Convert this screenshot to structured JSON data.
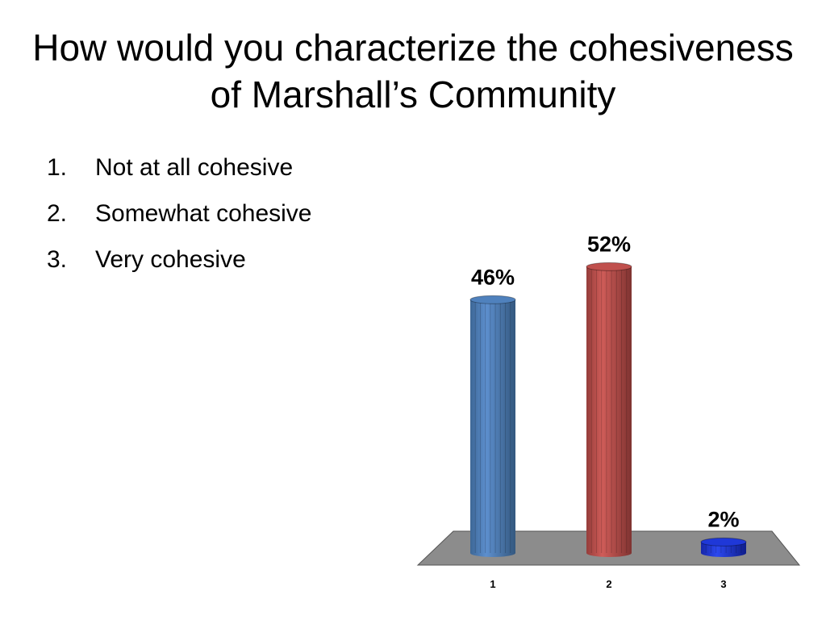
{
  "slide": {
    "title": "How would you characterize the cohesiveness of Marshall’s Community"
  },
  "answers": [
    {
      "number": "1.",
      "label": "Not at all cohesive"
    },
    {
      "number": "2.",
      "label": "Somewhat cohesive"
    },
    {
      "number": "3.",
      "label": "Very cohesive"
    }
  ],
  "chart_data": {
    "type": "bar",
    "title": "",
    "xlabel": "",
    "ylabel": "",
    "categories": [
      "1",
      "2",
      "3"
    ],
    "values": [
      46,
      52,
      2
    ],
    "data_labels": [
      "46%",
      "52%",
      "2%"
    ],
    "ylim": [
      0,
      55
    ],
    "grid": false,
    "legend": "none",
    "colors": [
      "#4f81bd",
      "#c0504d",
      "#1f38d8"
    ],
    "floor_color": "#8c8c8c"
  }
}
